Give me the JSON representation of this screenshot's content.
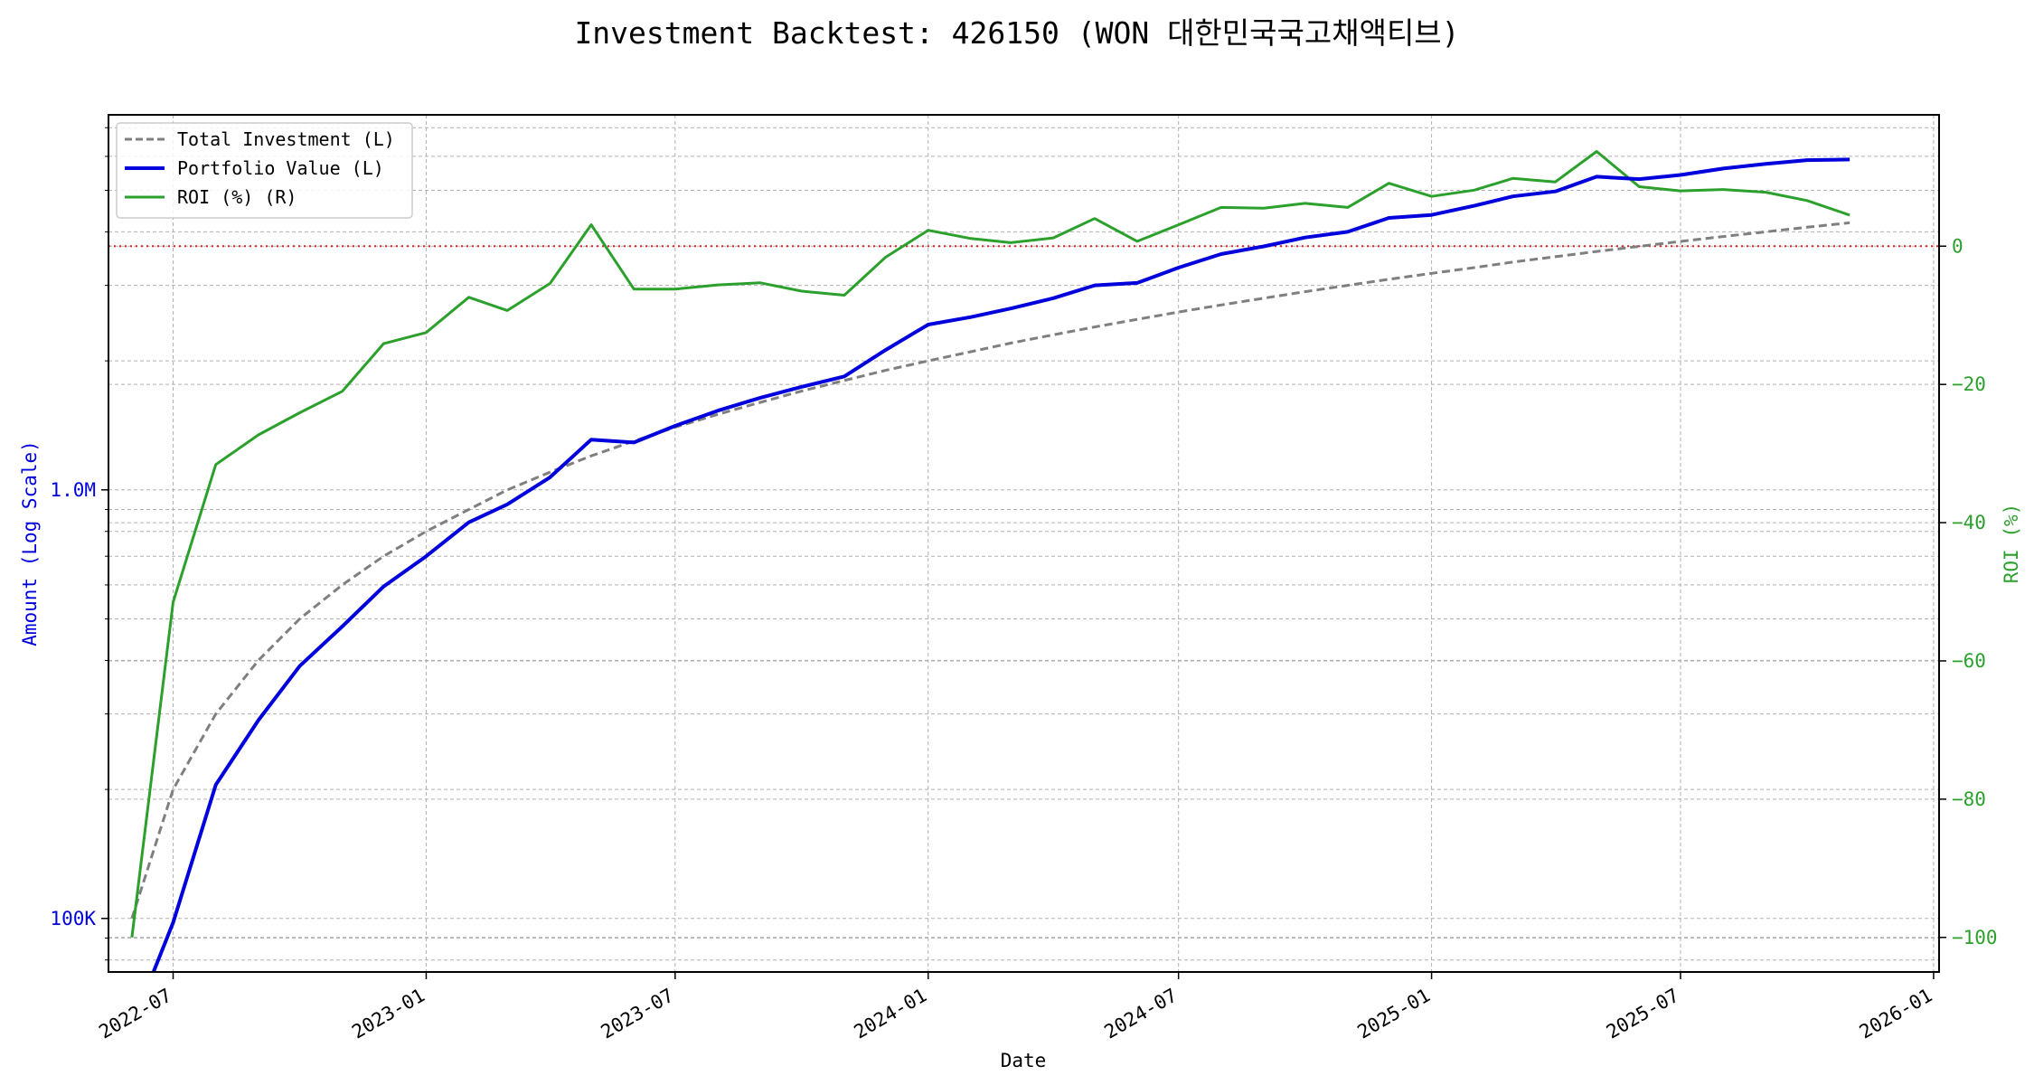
{
  "chart_data": {
    "type": "line",
    "title": "Investment Backtest: 426150 (WON 대한민국국고채액티브)",
    "xlabel": "Date",
    "ylabel_left": "Amount (Log Scale)",
    "ylabel_right": "ROI (%)",
    "left_axis": {
      "scale": "log",
      "ylim": [
        75000,
        7500000
      ],
      "ticks": [
        {
          "value": 100000,
          "label": "100K"
        },
        {
          "value": 1000000,
          "label": "1.0M"
        }
      ]
    },
    "right_axis": {
      "ylim": [
        -105,
        19
      ],
      "ticks": [
        {
          "value": -100,
          "label": "−100"
        },
        {
          "value": -80,
          "label": "−80"
        },
        {
          "value": -60,
          "label": "−60"
        },
        {
          "value": -40,
          "label": "−40"
        },
        {
          "value": -20,
          "label": "−20"
        },
        {
          "value": 0,
          "label": "0"
        }
      ]
    },
    "x_axis": {
      "xlim": [
        "2022-05-15",
        "2026-01-05"
      ],
      "ticks": [
        {
          "value": "2022-07-01",
          "label": "2022-07"
        },
        {
          "value": "2023-01-01",
          "label": "2023-01"
        },
        {
          "value": "2023-07-01",
          "label": "2023-07"
        },
        {
          "value": "2024-01-01",
          "label": "2024-01"
        },
        {
          "value": "2024-07-01",
          "label": "2024-07"
        },
        {
          "value": "2025-01-01",
          "label": "2025-01"
        },
        {
          "value": "2025-07-01",
          "label": "2025-07"
        },
        {
          "value": "2026-01-01",
          "label": "2026-01"
        }
      ]
    },
    "x": [
      "2022-06-01",
      "2022-07-01",
      "2022-08-01",
      "2022-09-01",
      "2022-10-01",
      "2022-11-01",
      "2022-12-01",
      "2023-01-01",
      "2023-02-01",
      "2023-03-01",
      "2023-04-01",
      "2023-05-01",
      "2023-06-01",
      "2023-07-01",
      "2023-08-01",
      "2023-09-01",
      "2023-10-01",
      "2023-11-01",
      "2023-12-01",
      "2024-01-01",
      "2024-02-01",
      "2024-03-01",
      "2024-04-01",
      "2024-05-01",
      "2024-06-01",
      "2024-07-01",
      "2024-08-01",
      "2024-09-01",
      "2024-10-01",
      "2024-11-01",
      "2024-12-01",
      "2025-01-01",
      "2025-02-01",
      "2025-03-01",
      "2025-04-01",
      "2025-05-01",
      "2025-06-01",
      "2025-07-01",
      "2025-08-01",
      "2025-09-01",
      "2025-10-01",
      "2025-11-01"
    ],
    "series": [
      {
        "name": "Total Investment (L)",
        "axis": "left",
        "color": "#7f7f7f",
        "dash": "dashed",
        "values": [
          100000,
          200000,
          300000,
          400000,
          500000,
          600000,
          700000,
          800000,
          900000,
          1000000,
          1100000,
          1200000,
          1300000,
          1400000,
          1500000,
          1600000,
          1700000,
          1800000,
          1900000,
          2000000,
          2100000,
          2200000,
          2300000,
          2400000,
          2500000,
          2600000,
          2700000,
          2800000,
          2900000,
          3000000,
          3100000,
          3200000,
          3300000,
          3400000,
          3500000,
          3600000,
          3700000,
          3800000,
          3900000,
          4000000,
          4100000,
          4200000
        ]
      },
      {
        "name": "Portfolio Value (L)",
        "axis": "left",
        "color": "#0000dd",
        "dash": "solid",
        "values": [
          0,
          97800,
          205000,
          290000,
          388000,
          480000,
          595000,
          700000,
          840000,
          925000,
          1070000,
          1310000,
          1290000,
          1410000,
          1530000,
          1640000,
          1740000,
          1840000,
          2120000,
          2430000,
          2530000,
          2650000,
          2800000,
          3000000,
          3040000,
          3300000,
          3550000,
          3700000,
          3880000,
          4000000,
          4310000,
          4380000,
          4600000,
          4840000,
          4970000,
          5380000,
          5310000,
          5430000,
          5620000,
          5760000,
          5880000,
          5900000
        ]
      },
      {
        "name": "ROI (%) (R)",
        "axis": "right",
        "color": "#2ca02c",
        "dash": "solid",
        "values": [
          -100,
          -51.5,
          -31.6,
          -27.3,
          -24.1,
          -21.0,
          -14.1,
          -12.5,
          -7.4,
          -9.3,
          -5.4,
          3.1,
          -6.2,
          -6.2,
          -5.6,
          -5.3,
          -6.5,
          -7.1,
          -1.6,
          2.3,
          1.1,
          0.5,
          1.2,
          4.0,
          0.7,
          3.1,
          5.6,
          5.5,
          6.2,
          5.6,
          9.1,
          7.2,
          8.1,
          9.8,
          9.3,
          13.7,
          8.6,
          8.0,
          8.2,
          7.8,
          6.6,
          4.5
        ]
      }
    ],
    "legend": {
      "placement": "top-left",
      "entries": [
        "Total Investment (L)",
        "Portfolio Value (L)",
        "ROI (%) (R)"
      ]
    },
    "reference_line": {
      "axis": "right",
      "value": 0,
      "color": "#d62728",
      "style": "dotted"
    },
    "grid": true,
    "colors": {
      "left_axis": "#0000dd",
      "right_axis": "#2ca02c"
    }
  }
}
